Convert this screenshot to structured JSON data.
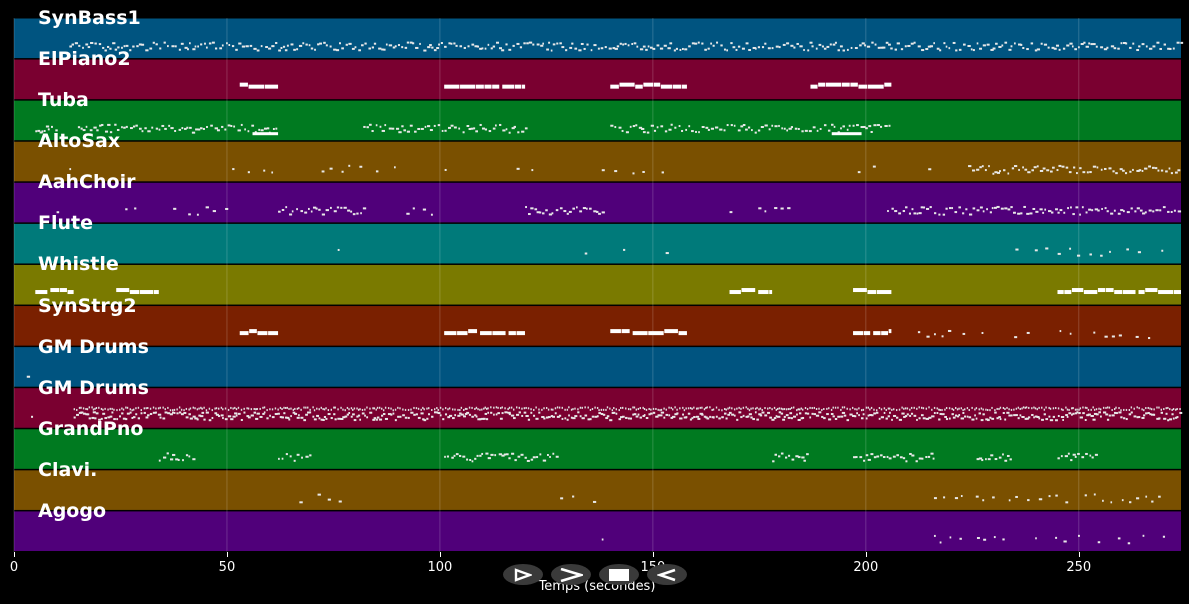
{
  "chart_data": {
    "type": "piano-roll",
    "xlabel": "Temps (secondes)",
    "xlim": [
      0,
      274
    ],
    "xticks": [
      0,
      50,
      100,
      150,
      200,
      250
    ],
    "grid": true,
    "tracks": [
      {
        "name": "SynBass1",
        "color": "#005480",
        "notes": [
          [
            13,
            274,
            "dense"
          ]
        ]
      },
      {
        "name": "ElPiano2",
        "color": "#7a0030",
        "notes": [
          [
            53,
            62,
            "block"
          ],
          [
            101,
            120,
            "block"
          ],
          [
            140,
            158,
            "block"
          ],
          [
            187,
            206,
            "block"
          ]
        ]
      },
      {
        "name": "Tuba",
        "color": "#007a20",
        "notes": [
          [
            5,
            10,
            "dense"
          ],
          [
            15,
            62,
            "dense"
          ],
          [
            82,
            120,
            "dense"
          ],
          [
            140,
            206,
            "dense"
          ],
          [
            56,
            62,
            "low"
          ],
          [
            192,
            199,
            "low"
          ]
        ]
      },
      {
        "name": "AltoSax",
        "color": "#7a5000",
        "notes": [
          [
            13,
            14,
            "sparse"
          ],
          [
            47,
            65,
            "sparse"
          ],
          [
            68,
            90,
            "sparse"
          ],
          [
            99,
            102,
            "sparse"
          ],
          [
            118,
            122,
            "sparse"
          ],
          [
            138,
            155,
            "sparse"
          ],
          [
            196,
            216,
            "sparse"
          ],
          [
            224,
            274,
            "dense"
          ]
        ]
      },
      {
        "name": "AahChoir",
        "color": "#50007a",
        "notes": [
          [
            10,
            13,
            "sparse"
          ],
          [
            24,
            50,
            "sparse"
          ],
          [
            62,
            82,
            "dense"
          ],
          [
            90,
            110,
            "sparse"
          ],
          [
            120,
            138,
            "dense"
          ],
          [
            168,
            185,
            "sparse"
          ],
          [
            205,
            274,
            "dense"
          ]
        ]
      },
      {
        "name": "Flute",
        "color": "#007a7a",
        "notes": [
          [
            67,
            68,
            "sparse"
          ],
          [
            76,
            77,
            "sparse"
          ],
          [
            124,
            125,
            "sparse"
          ],
          [
            134,
            135,
            "sparse"
          ],
          [
            143,
            144,
            "sparse"
          ],
          [
            153,
            154,
            "sparse"
          ],
          [
            220,
            221,
            "sparse"
          ],
          [
            233,
            274,
            "sparse"
          ]
        ]
      },
      {
        "name": "Whistle",
        "color": "#7a7a00",
        "notes": [
          [
            5,
            14,
            "block"
          ],
          [
            24,
            34,
            "block"
          ],
          [
            168,
            178,
            "block"
          ],
          [
            197,
            206,
            "block"
          ],
          [
            245,
            274,
            "block"
          ]
        ]
      },
      {
        "name": "SynStrg2",
        "color": "#7a2000",
        "notes": [
          [
            53,
            62,
            "block"
          ],
          [
            101,
            120,
            "block"
          ],
          [
            140,
            158,
            "block"
          ],
          [
            197,
            206,
            "block"
          ],
          [
            208,
            274,
            "sparse"
          ]
        ]
      },
      {
        "name": "GM Drums",
        "color": "#005480",
        "notes": [
          [
            3,
            4,
            "sparse"
          ]
        ]
      },
      {
        "name": "GM Drums",
        "color": "#7a0030",
        "notes": [
          [
            4,
            5,
            "sparse"
          ],
          [
            14,
            274,
            "drums"
          ]
        ]
      },
      {
        "name": "GrandPno",
        "color": "#007a20",
        "notes": [
          [
            34,
            42,
            "dense"
          ],
          [
            62,
            70,
            "dense"
          ],
          [
            101,
            128,
            "dense"
          ],
          [
            178,
            186,
            "dense"
          ],
          [
            197,
            216,
            "dense"
          ],
          [
            226,
            234,
            "dense"
          ],
          [
            245,
            254,
            "dense"
          ]
        ]
      },
      {
        "name": "Clavi.",
        "color": "#7a5000",
        "notes": [
          [
            67,
            80,
            "sparse"
          ],
          [
            124,
            138,
            "sparse"
          ],
          [
            216,
            274,
            "sparse"
          ]
        ]
      },
      {
        "name": "Agogo",
        "color": "#50007a",
        "notes": [
          [
            138,
            139,
            "sparse"
          ],
          [
            216,
            274,
            "sparse"
          ]
        ]
      }
    ]
  },
  "controls": [
    {
      "name": "play-outline-icon"
    },
    {
      "name": "forward-icon"
    },
    {
      "name": "stop-icon"
    },
    {
      "name": "rewind-icon"
    }
  ]
}
